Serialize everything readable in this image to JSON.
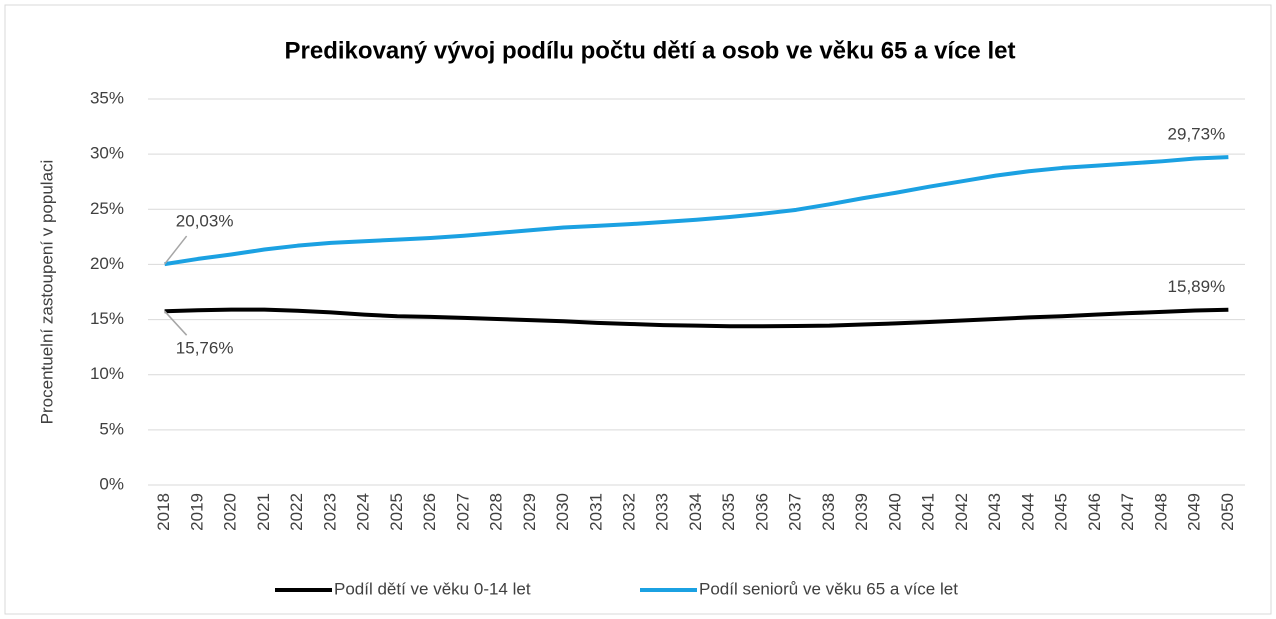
{
  "chart_data": {
    "type": "line",
    "title": "Predikovaný vývoj podílu počtu dětí a osob ve věku 65 a více let",
    "y_label": "Procentuelní zastoupení v populaci",
    "categories": [
      "2018",
      "2019",
      "2020",
      "2021",
      "2022",
      "2023",
      "2024",
      "2025",
      "2026",
      "2027",
      "2028",
      "2029",
      "2030",
      "2031",
      "2032",
      "2033",
      "2034",
      "2035",
      "2036",
      "2037",
      "2038",
      "2039",
      "2040",
      "2041",
      "2042",
      "2043",
      "2044",
      "2045",
      "2046",
      "2047",
      "2048",
      "2049",
      "2050"
    ],
    "series": [
      {
        "name": "Podíl dětí ve věku 0-14 let",
        "color": "#000000",
        "values": [
          15.76,
          15.85,
          15.9,
          15.9,
          15.8,
          15.65,
          15.45,
          15.3,
          15.25,
          15.15,
          15.05,
          14.95,
          14.85,
          14.7,
          14.6,
          14.5,
          14.45,
          14.4,
          14.4,
          14.42,
          14.45,
          14.55,
          14.65,
          14.78,
          14.92,
          15.05,
          15.2,
          15.3,
          15.45,
          15.58,
          15.7,
          15.82,
          15.89
        ],
        "value_labels": [
          "15,76%",
          null,
          null,
          null,
          null,
          null,
          null,
          null,
          null,
          null,
          null,
          null,
          null,
          null,
          null,
          null,
          null,
          null,
          null,
          null,
          null,
          null,
          null,
          null,
          null,
          null,
          null,
          null,
          null,
          null,
          null,
          null,
          "15,89%"
        ]
      },
      {
        "name": "Podíl seniorů ve věku 65 a více let",
        "color": "#1ba1e2",
        "values": [
          20.03,
          20.5,
          20.9,
          21.35,
          21.7,
          21.95,
          22.1,
          22.25,
          22.4,
          22.6,
          22.85,
          23.1,
          23.35,
          23.5,
          23.65,
          23.85,
          24.05,
          24.3,
          24.6,
          24.95,
          25.45,
          26.0,
          26.5,
          27.05,
          27.55,
          28.05,
          28.45,
          28.75,
          28.95,
          29.15,
          29.35,
          29.6,
          29.73
        ],
        "value_labels": [
          "20,03%",
          null,
          null,
          null,
          null,
          null,
          null,
          null,
          null,
          null,
          null,
          null,
          null,
          null,
          null,
          null,
          null,
          null,
          null,
          null,
          null,
          null,
          null,
          null,
          null,
          null,
          null,
          null,
          null,
          null,
          null,
          null,
          "29,73%"
        ]
      }
    ],
    "ylim": [
      0,
      35
    ],
    "yticks": [
      {
        "value": 0,
        "label": "0%"
      },
      {
        "value": 5,
        "label": "5%"
      },
      {
        "value": 10,
        "label": "10%"
      },
      {
        "value": 15,
        "label": "15%"
      },
      {
        "value": 20,
        "label": "20%"
      },
      {
        "value": 25,
        "label": "25%"
      },
      {
        "value": 30,
        "label": "30%"
      },
      {
        "value": 35,
        "label": "35%"
      }
    ],
    "grid": true,
    "legend": "bottom"
  }
}
